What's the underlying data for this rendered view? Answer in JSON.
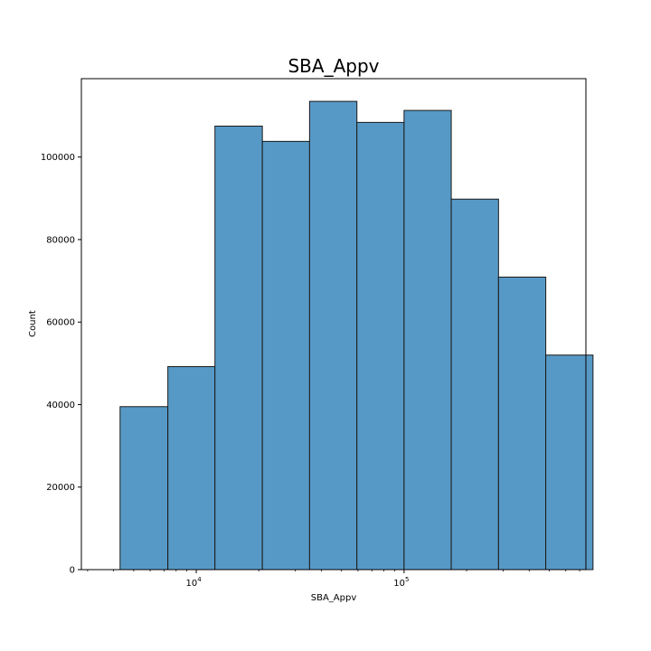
{
  "chart_data": {
    "type": "bar",
    "title": "SBA_Appv",
    "xlabel": "SBA_Appv",
    "ylabel": "Count",
    "x_scale": "log",
    "xlim": [
      2800,
      750000
    ],
    "ylim": [
      0,
      119000
    ],
    "grid": false,
    "bar_color": "#5799c6",
    "edge_color": "#1a1a1a",
    "bin_edges": [
      4300,
      7300,
      12300,
      20800,
      35100,
      59300,
      100000,
      168700,
      284800,
      480800,
      811500
    ],
    "values": [
      39500,
      49200,
      107500,
      103800,
      113500,
      108400,
      111300,
      89800,
      70900,
      52000
    ],
    "y_ticks": [
      {
        "value": 0,
        "label": "0"
      },
      {
        "value": 20000,
        "label": "20000"
      },
      {
        "value": 40000,
        "label": "40000"
      },
      {
        "value": 60000,
        "label": "60000"
      },
      {
        "value": 80000,
        "label": "80000"
      },
      {
        "value": 100000,
        "label": "100000"
      }
    ],
    "x_ticks": [
      {
        "value": 10000,
        "base": "10",
        "exp": "4"
      },
      {
        "value": 100000,
        "base": "10",
        "exp": "5"
      }
    ]
  }
}
